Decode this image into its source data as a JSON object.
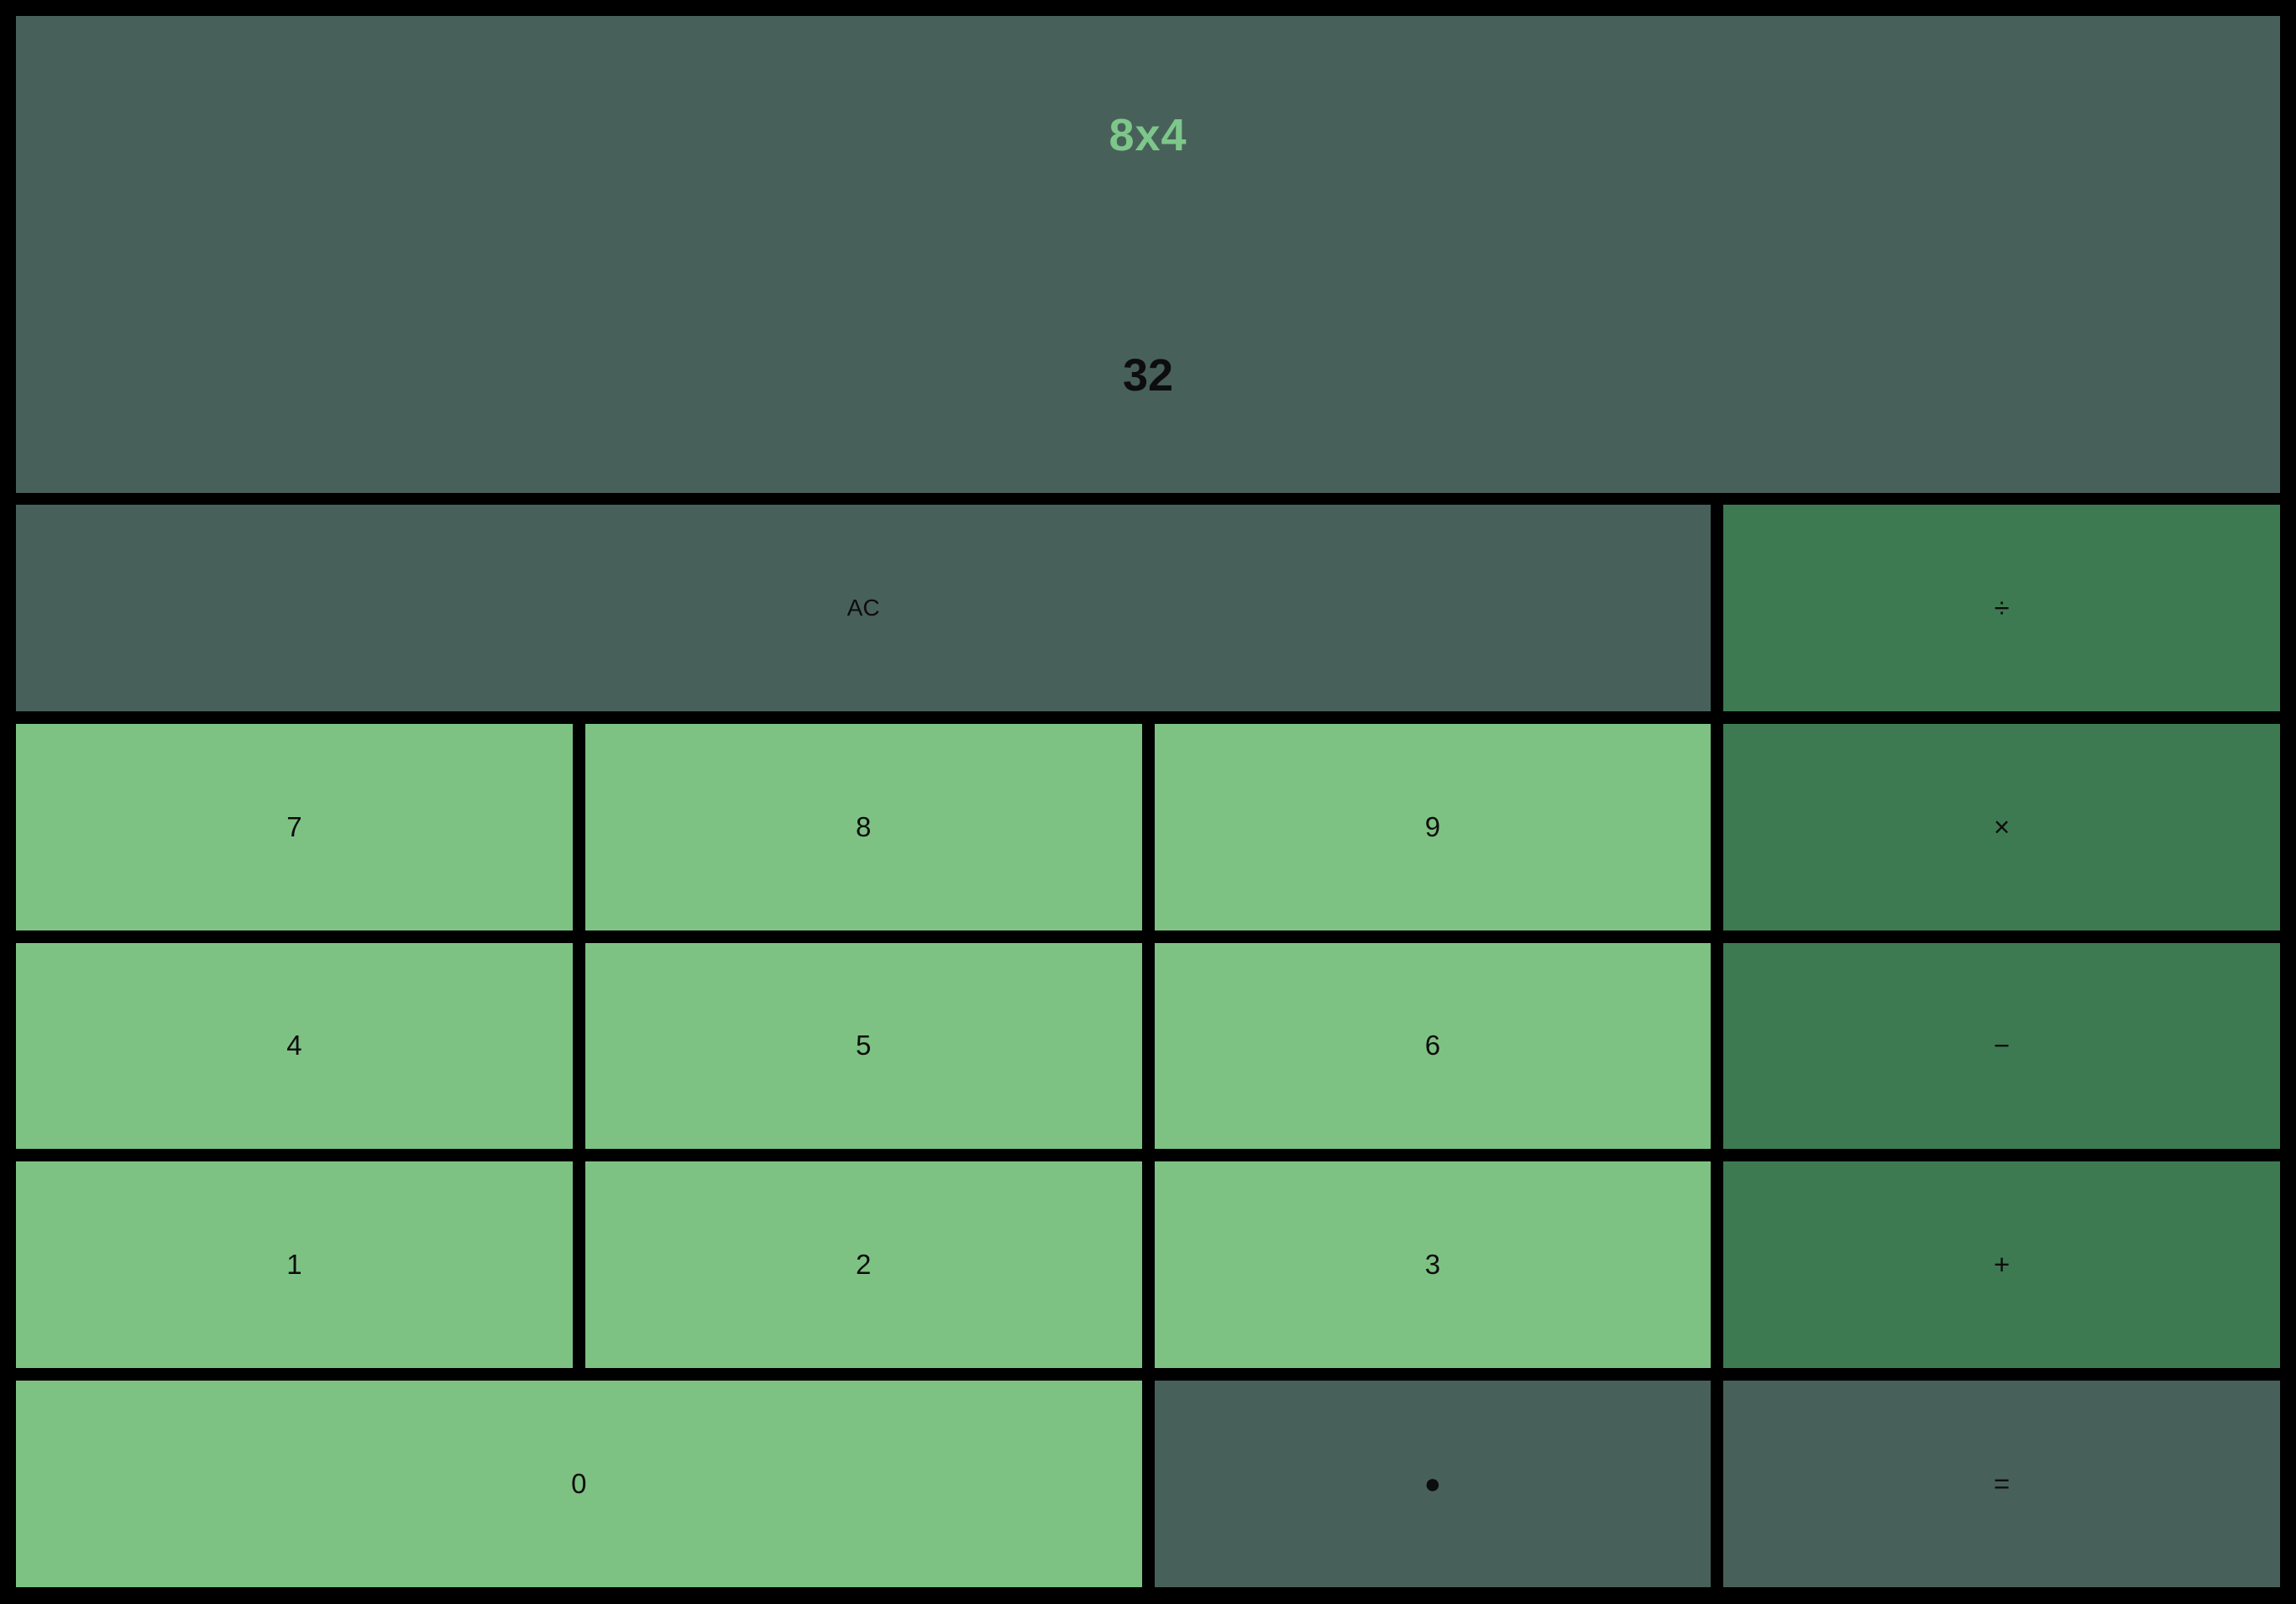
{
  "display": {
    "expression": "8x4",
    "result": "32"
  },
  "keys": {
    "all_clear": "AC",
    "divide": "÷",
    "seven": "7",
    "eight": "8",
    "nine": "9",
    "multiply": "×",
    "four": "4",
    "five": "5",
    "six": "6",
    "subtract": "−",
    "one": "1",
    "two": "2",
    "three": "3",
    "add": "+",
    "zero": "0",
    "decimal": "●",
    "equals": "="
  },
  "colors": {
    "frame": "#000000",
    "display_bg": "#48605a",
    "dark_key_bg": "#48605a",
    "operator_key_bg": "#3d7a52",
    "number_key_bg": "#7ec283",
    "expression_text": "#7dc78a",
    "result_text": "#0d0d0d",
    "key_text": "#0d0d0d"
  }
}
